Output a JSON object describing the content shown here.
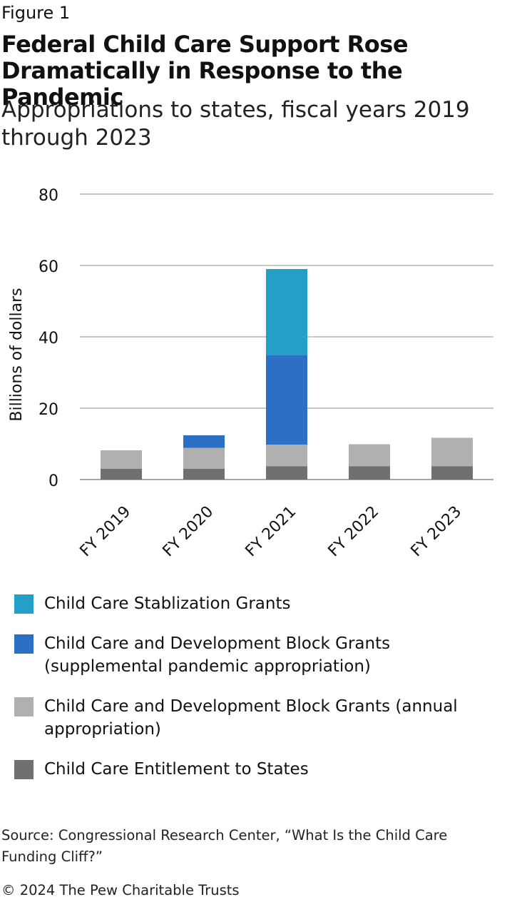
{
  "figure_label": "Figure 1",
  "title": "Federal Child Care Support Rose Dramatically in Response to the Pandemic",
  "subtitle": "Appropriations to states, fiscal years 2019 through 2023",
  "chart_data": {
    "type": "bar",
    "stacked": true,
    "categories": [
      "FY 2019",
      "FY 2020",
      "FY 2021",
      "FY 2022",
      "FY 2023"
    ],
    "series": [
      {
        "name": "Child Care Entitlement to States",
        "color": "#707070",
        "values": [
          3,
          3,
          3.7,
          3.7,
          3.7
        ]
      },
      {
        "name": "Child Care and Development Block Grants (annual appropriation)",
        "color": "#b0b0b0",
        "values": [
          5.2,
          5.9,
          6.1,
          6.2,
          8.0
        ]
      },
      {
        "name": "Child Care and Development Block Grants (supplemental pandemic appropriation)",
        "color": "#2e6fc6",
        "values": [
          0,
          3.5,
          25,
          0,
          0
        ]
      },
      {
        "name": "Child Care Stablization Grants",
        "color": "#239fc8",
        "values": [
          0,
          0,
          24.2,
          0,
          0
        ]
      }
    ],
    "ylabel": "Billions of dollars",
    "xlabel": "",
    "ylim": [
      0,
      80
    ],
    "yticks": [
      0,
      20,
      40,
      60,
      80
    ],
    "grid": true,
    "legend_position": "bottom",
    "legend_order": [
      3,
      2,
      1,
      0
    ]
  },
  "source": "Source: Congressional Research Center, “What Is the Child Care Funding Cliff?”",
  "copyright": "© 2024 The Pew Charitable Trusts"
}
